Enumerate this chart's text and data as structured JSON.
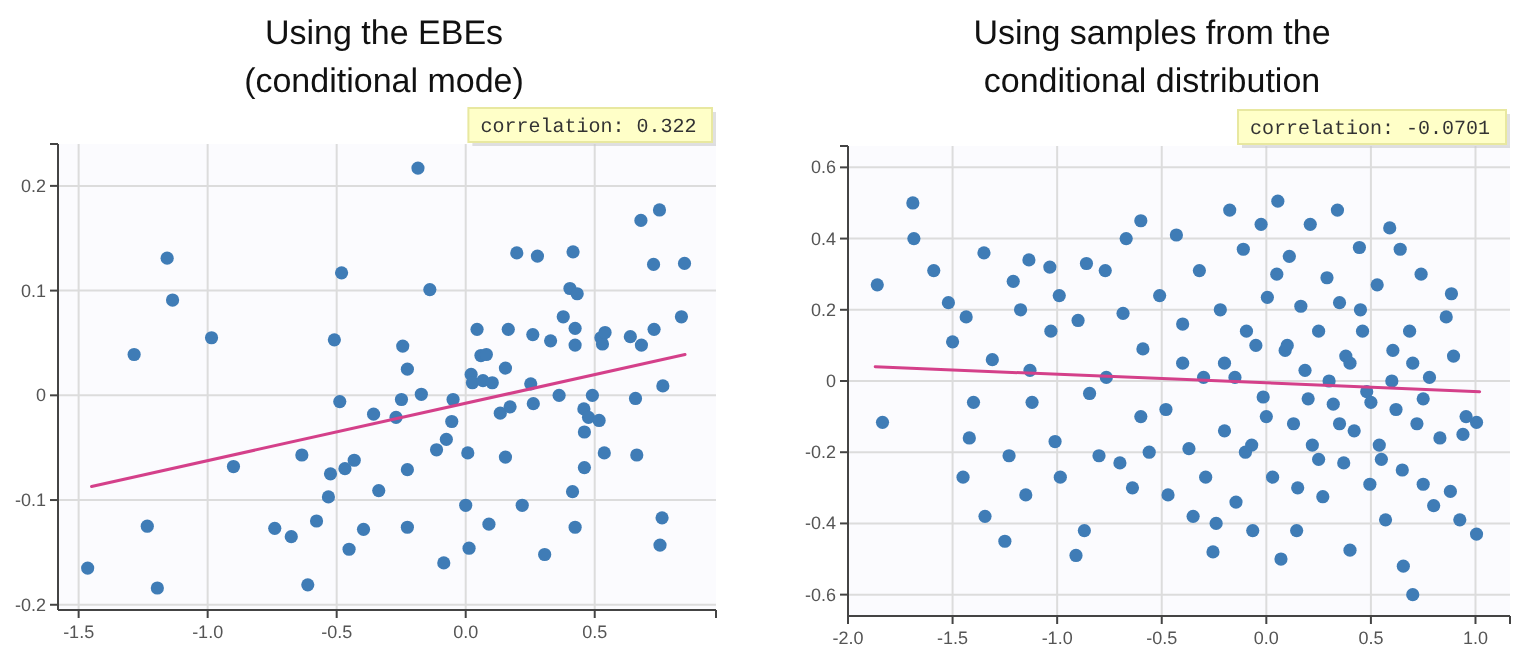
{
  "chart_data": [
    {
      "type": "scatter",
      "title": "Using the EBEs\n(conditional mode)",
      "xlim": [
        -1.58,
        0.97
      ],
      "ylim": [
        -0.205,
        0.24
      ],
      "xticks": [
        -1.5,
        {
          "value": -1,
          "label": "-1.0"
        },
        -0.5,
        {
          "value": 0,
          "label": "0.0"
        },
        0.5
      ],
      "yticks": [
        -0.2,
        -0.1,
        0,
        0.1,
        0.2
      ],
      "grid": true,
      "annotations": [
        "correlation: 0.322"
      ],
      "series": [
        {
          "marker": "circle",
          "color": "#3f7cb6",
          "x": [
            -1.465,
            -1.285,
            -1.157,
            -1.136,
            -1.234,
            -1.195,
            -0.985,
            -0.9,
            -0.74,
            -0.676,
            -0.635,
            -0.612,
            -0.578,
            -0.532,
            -0.524,
            -0.509,
            -0.488,
            -0.481,
            -0.468,
            -0.452,
            -0.432,
            -0.396,
            -0.337,
            -0.357,
            -0.27,
            -0.249,
            -0.244,
            -0.226,
            -0.226,
            -0.226,
            -0.185,
            -0.172,
            -0.139,
            -0.113,
            -0.085,
            -0.075,
            -0.054,
            -0.049,
            0.0,
            0.008,
            0.013,
            0.021,
            0.026,
            0.044,
            0.059,
            0.067,
            0.08,
            0.09,
            0.103,
            0.134,
            0.154,
            0.154,
            0.165,
            0.172,
            0.198,
            0.219,
            0.252,
            0.26,
            0.262,
            0.278,
            0.306,
            0.329,
            0.362,
            0.378,
            0.404,
            0.414,
            0.416,
            0.424,
            0.424,
            0.424,
            0.432,
            0.458,
            0.46,
            0.46,
            0.476,
            0.491,
            0.517,
            0.524,
            0.53,
            0.537,
            0.54,
            0.638,
            0.658,
            0.663,
            0.679,
            0.681,
            0.73,
            0.728,
            0.751,
            0.753,
            0.761,
            0.764,
            0.836,
            0.848
          ],
          "values": [
            -0.165,
            0.039,
            0.131,
            0.091,
            -0.125,
            -0.184,
            0.055,
            -0.068,
            -0.127,
            -0.135,
            -0.057,
            -0.181,
            -0.12,
            -0.097,
            -0.075,
            0.053,
            -0.006,
            0.117,
            -0.07,
            -0.147,
            -0.062,
            -0.128,
            -0.091,
            -0.018,
            -0.021,
            -0.004,
            0.047,
            0.025,
            -0.071,
            -0.126,
            0.217,
            0.001,
            0.101,
            -0.052,
            -0.16,
            -0.042,
            -0.025,
            -0.004,
            -0.105,
            -0.055,
            -0.146,
            0.02,
            0.012,
            0.063,
            0.038,
            0.014,
            0.039,
            -0.123,
            0.012,
            -0.017,
            -0.059,
            0.026,
            0.063,
            -0.011,
            0.136,
            -0.105,
            0.011,
            0.058,
            -0.008,
            0.133,
            -0.152,
            0.052,
            0.0,
            0.075,
            0.102,
            -0.092,
            0.137,
            0.048,
            0.064,
            -0.126,
            0.097,
            -0.013,
            -0.035,
            -0.069,
            -0.021,
            0.0,
            -0.024,
            0.055,
            0.049,
            -0.055,
            0.06,
            0.056,
            -0.003,
            -0.057,
            0.167,
            0.048,
            0.063,
            0.125,
            0.177,
            -0.143,
            -0.117,
            0.009,
            0.075,
            0.126
          ]
        },
        {
          "type": "line",
          "marker": "none",
          "color": "#d4408a",
          "x": [
            -1.45,
            0.85
          ],
          "values": [
            -0.087,
            0.039
          ]
        }
      ]
    },
    {
      "type": "scatter",
      "title": "Using samples from the\nconditional distribution",
      "xlim": [
        -2.0,
        1.165
      ],
      "ylim": [
        -0.66,
        0.66
      ],
      "xticks": [
        {
          "value": -2,
          "label": "-2.0"
        },
        -1.5,
        {
          "value": -1,
          "label": "-1.0"
        },
        -0.5,
        {
          "value": 0,
          "label": "0.0"
        },
        0.5,
        {
          "value": 1,
          "label": "1.0"
        }
      ],
      "yticks": [
        -0.6,
        -0.4,
        -0.2,
        0,
        0.2,
        0.4,
        0.6
      ],
      "grid": true,
      "annotations": [
        "correlation: -0.0701"
      ],
      "series": [
        {
          "marker": "circle",
          "color": "#3f7cb6",
          "x": [
            -1.86,
            -1.835,
            -1.69,
            -1.685,
            -1.59,
            -1.52,
            -1.5,
            -1.45,
            -1.435,
            -1.42,
            -1.35,
            -1.345,
            -1.31,
            -1.4,
            -1.25,
            -1.23,
            -1.21,
            -1.175,
            -1.15,
            -1.135,
            -1.13,
            -1.12,
            -1.035,
            -1.01,
            -0.99,
            -1.03,
            -0.985,
            -0.91,
            -0.87,
            -0.86,
            -0.9,
            -0.845,
            -0.8,
            -0.765,
            -0.77,
            -0.685,
            -0.7,
            -0.67,
            -0.64,
            -0.6,
            -0.59,
            -0.56,
            -0.51,
            -0.48,
            -0.47,
            -0.43,
            -0.4,
            -0.37,
            -0.35,
            -0.32,
            -0.3,
            -0.29,
            -0.255,
            -0.24,
            -0.22,
            -0.2,
            -0.175,
            -0.15,
            -0.145,
            -0.11,
            -0.095,
            -0.07,
            -0.065,
            -0.025,
            -0.015,
            0.005,
            0.03,
            0.055,
            0.07,
            0.09,
            0.11,
            0.13,
            0.145,
            0.165,
            0.185,
            0.21,
            0.22,
            0.25,
            0.27,
            0.29,
            0.32,
            0.34,
            0.35,
            0.37,
            0.38,
            0.4,
            0.42,
            0.445,
            0.46,
            0.48,
            0.495,
            0.53,
            0.54,
            0.57,
            0.59,
            0.605,
            0.62,
            0.64,
            0.65,
            0.655,
            0.685,
            0.7,
            0.72,
            0.74,
            0.75,
            0.78,
            0.8,
            0.83,
            0.86,
            0.88,
            0.885,
            0.895,
            0.925,
            0.94,
            0.955,
            1.005,
            1.005,
            -0.2,
            0.0,
            0.1,
            0.2,
            0.3,
            0.4,
            0.5,
            0.6,
            0.7,
            -0.1,
            0.25,
            0.45,
            -0.4,
            -0.6,
            0.15,
            0.55,
            0.05,
            0.35,
            0.75,
            -0.05
          ],
          "values": [
            0.27,
            -0.116,
            0.5,
            0.4,
            0.31,
            0.22,
            0.11,
            -0.27,
            0.18,
            -0.16,
            0.36,
            -0.38,
            0.06,
            -0.06,
            -0.45,
            -0.21,
            0.28,
            0.2,
            -0.32,
            0.34,
            0.03,
            -0.06,
            0.32,
            -0.17,
            0.24,
            0.14,
            -0.27,
            -0.49,
            -0.42,
            0.33,
            0.17,
            -0.035,
            -0.21,
            0.01,
            0.31,
            0.19,
            -0.23,
            0.4,
            -0.3,
            0.45,
            0.09,
            -0.2,
            0.24,
            -0.08,
            -0.32,
            0.41,
            0.16,
            -0.19,
            -0.38,
            0.31,
            0.01,
            -0.27,
            -0.48,
            -0.4,
            0.2,
            -0.14,
            0.48,
            0.01,
            -0.34,
            0.37,
            0.14,
            -0.18,
            -0.42,
            0.44,
            -0.045,
            0.235,
            -0.27,
            0.505,
            -0.5,
            0.086,
            0.35,
            -0.12,
            -0.42,
            0.21,
            0.03,
            0.44,
            -0.18,
            0.14,
            -0.325,
            0.29,
            -0.065,
            0.48,
            0.22,
            -0.23,
            0.07,
            -0.475,
            -0.14,
            0.375,
            0.14,
            -0.03,
            -0.29,
            0.27,
            -0.18,
            -0.39,
            0.43,
            0.086,
            -0.08,
            0.37,
            -0.25,
            -0.52,
            0.14,
            -0.6,
            -0.12,
            0.3,
            -0.29,
            0.01,
            -0.35,
            -0.16,
            0.18,
            -0.31,
            0.245,
            0.07,
            -0.39,
            -0.15,
            -0.1,
            -0.116,
            -0.43,
            0.05,
            -0.1,
            0.1,
            -0.05,
            0.0,
            0.05,
            -0.06,
            0.0,
            0.05,
            -0.2,
            -0.22,
            0.2,
            0.05,
            -0.1,
            -0.3,
            -0.22,
            0.3,
            -0.12,
            -0.05,
            0.1
          ]
        },
        {
          "type": "line",
          "marker": "none",
          "color": "#d4408a",
          "x": [
            -1.87,
            1.02
          ],
          "values": [
            0.04,
            -0.03
          ]
        }
      ]
    }
  ]
}
